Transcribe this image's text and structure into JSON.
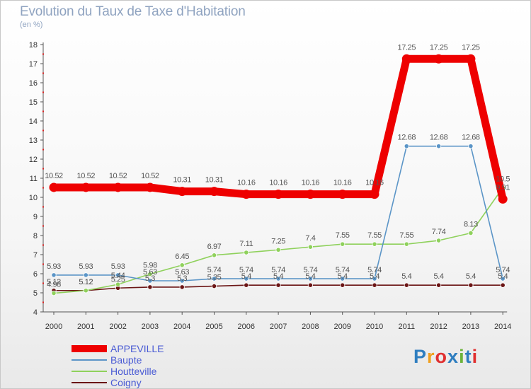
{
  "header": {
    "title": "Evolution du Taux de Taxe d'Habitation",
    "subtitle": "(en %)"
  },
  "logo": {
    "text": "Proxiti"
  },
  "chart_data": {
    "type": "line",
    "title": "Evolution du Taux de Taxe d'Habitation",
    "ylabel": "(en %)",
    "ylim": [
      4,
      18
    ],
    "yticks": [
      4,
      5,
      6,
      7,
      8,
      9,
      10,
      11,
      12,
      13,
      14,
      15,
      16,
      17,
      18
    ],
    "grid": false,
    "legend": "bottom-left",
    "x": [
      "2000",
      "2001",
      "2002",
      "2003",
      "2004",
      "2005",
      "2006",
      "2007",
      "2008",
      "2009",
      "2010",
      "2011",
      "2012",
      "2013",
      "2014"
    ],
    "series": [
      {
        "name": "Coigny",
        "color": "#6b1515",
        "values": [
          5.12,
          5.12,
          5.25,
          5.3,
          5.3,
          5.35,
          5.4,
          5.4,
          5.4,
          5.4,
          5.4,
          5.4,
          5.4,
          5.4,
          5.4
        ],
        "labels": [
          "5.12",
          "5.12",
          "5.25",
          "5.3",
          "5.3",
          "5.35",
          "5.4",
          "5.4",
          "5.4",
          "5.4",
          "5.4",
          "5.4",
          "5.4",
          "5.4",
          "5.4"
        ]
      },
      {
        "name": "Houtteville",
        "color": "#8fd15c",
        "values": [
          4.98,
          5.12,
          5.44,
          5.98,
          6.45,
          6.97,
          7.11,
          7.25,
          7.4,
          7.55,
          7.55,
          7.55,
          7.74,
          8.13,
          10.5
        ],
        "labels": [
          "4.98",
          "5.12",
          "5.44",
          "5.98",
          "6.45",
          "6.97",
          "7.11",
          "7.25",
          "7.4",
          "7.55",
          "7.55",
          "7.55",
          "7.74",
          "8.13",
          "10.5"
        ]
      },
      {
        "name": "Baupte",
        "color": "#5b95c7",
        "values": [
          5.93,
          5.93,
          5.93,
          5.63,
          5.63,
          5.74,
          5.74,
          5.74,
          5.74,
          5.74,
          5.74,
          12.68,
          12.68,
          12.68,
          5.74
        ],
        "labels": [
          "5.93",
          "5.93",
          "5.93",
          "5.63",
          "5.63",
          "5.74",
          "5.74",
          "5.74",
          "5.74",
          "5.74",
          "5.74",
          "12.68",
          "12.68",
          "12.68",
          "5.74"
        ]
      },
      {
        "name": "APPEVILLE",
        "color": "#ee0000",
        "values": [
          10.52,
          10.52,
          10.52,
          10.52,
          10.31,
          10.31,
          10.16,
          10.16,
          10.16,
          10.16,
          10.16,
          17.25,
          17.25,
          17.25,
          9.91
        ],
        "labels": [
          "10.52",
          "10.52",
          "10.52",
          "10.52",
          "10.31",
          "10.31",
          "10.16",
          "10.16",
          "10.16",
          "10.16",
          "10.16",
          "17.25",
          "17.25",
          "17.25",
          "9.91"
        ]
      }
    ],
    "legend_entries": [
      "APPEVILLE",
      "Baupte",
      "Houtteville",
      "Coigny"
    ]
  }
}
